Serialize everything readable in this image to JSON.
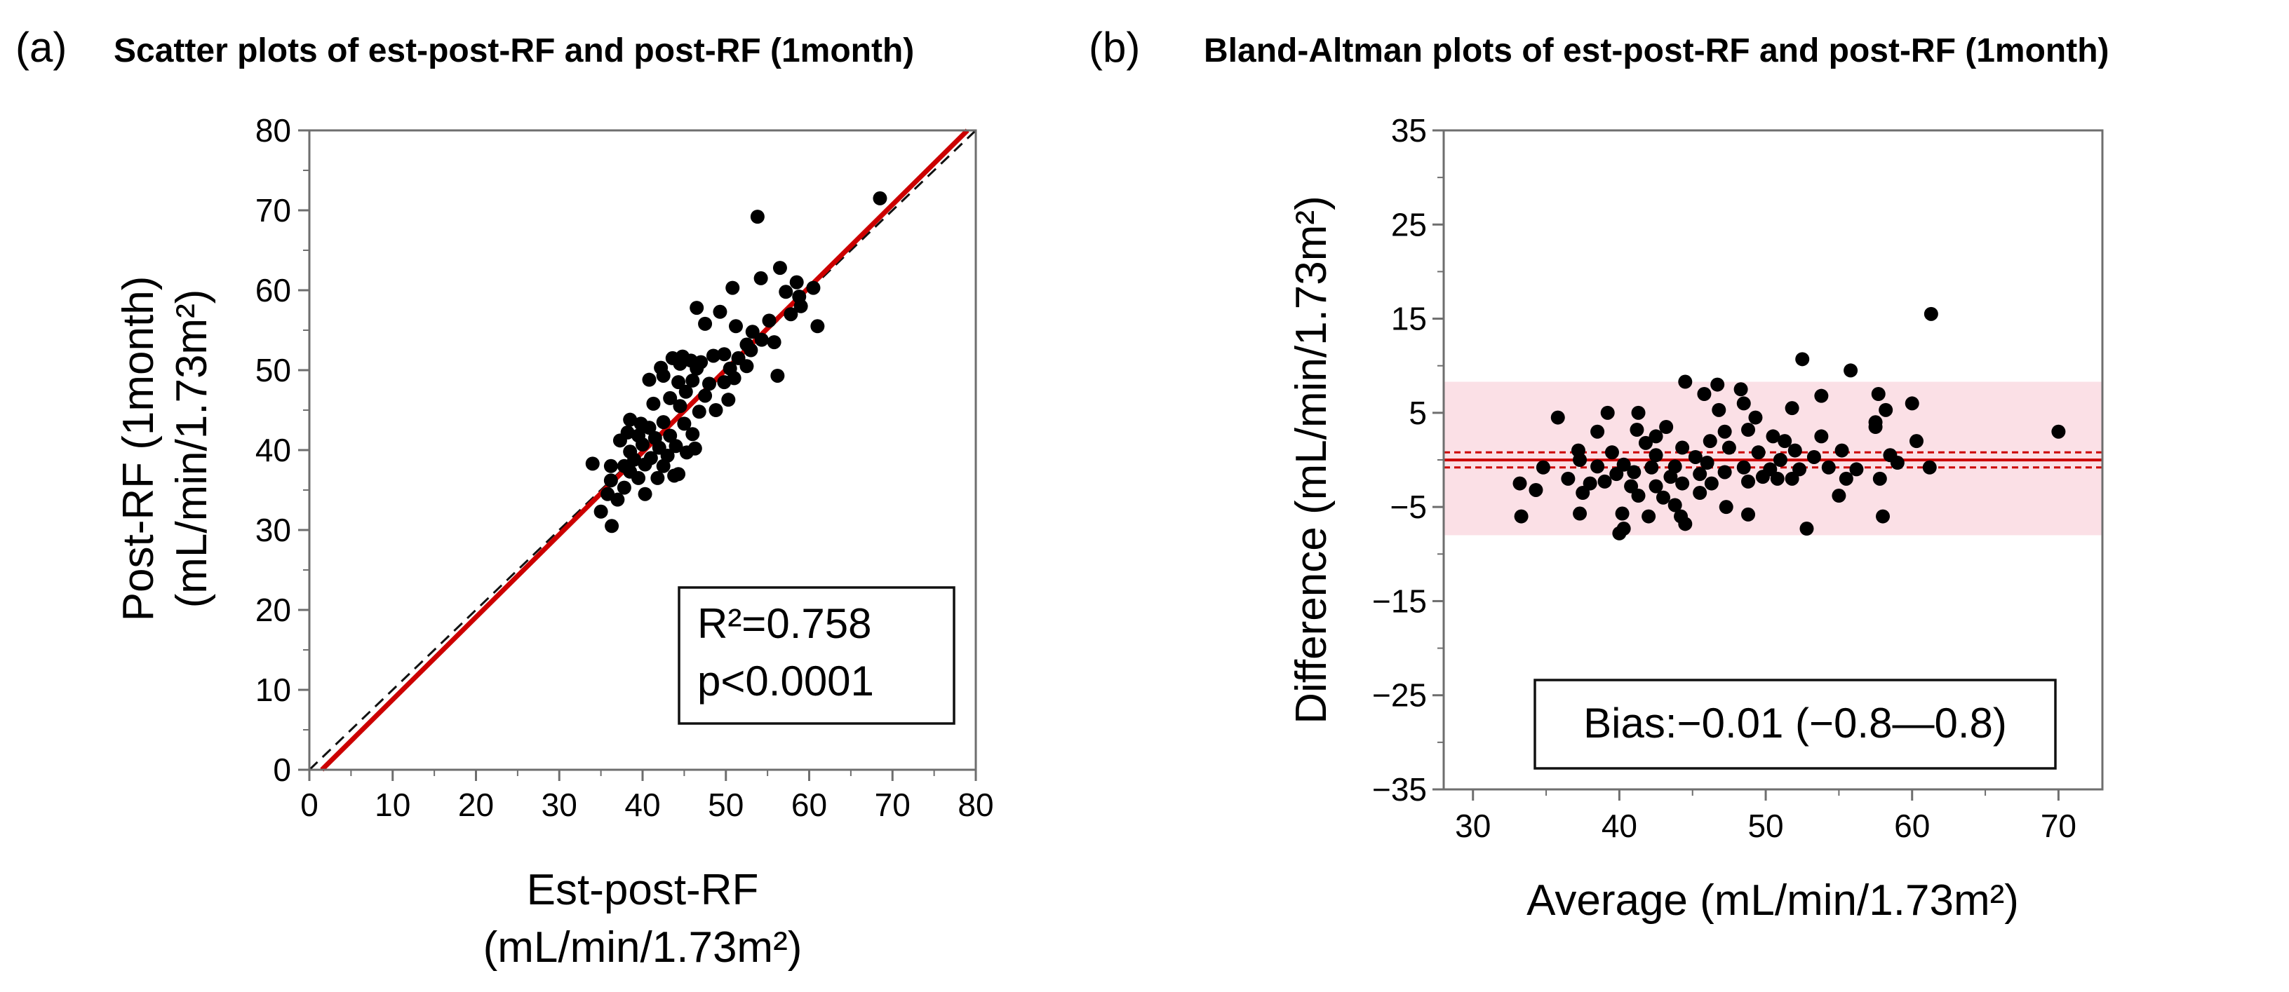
{
  "chart_data": [
    {
      "panel": "(a)",
      "type": "scatter",
      "title": "Scatter plots of est-post-RF and post-RF (1month)",
      "xlabel_lines": [
        "Est-post-RF",
        "(mL/min/1.73m²)"
      ],
      "ylabel_lines": [
        "Post-RF  (1month)",
        "(mL/min/1.73m²)"
      ],
      "xlim": [
        0,
        80
      ],
      "ylim": [
        0,
        80
      ],
      "xticks": [
        0,
        10,
        20,
        30,
        40,
        50,
        60,
        70,
        80
      ],
      "yticks": [
        0,
        10,
        20,
        30,
        40,
        50,
        60,
        70,
        80
      ],
      "annotation_lines": [
        "R²=0.758",
        "p<0.0001"
      ],
      "identity_line": {
        "from": [
          0,
          0
        ],
        "to": [
          80,
          80
        ],
        "style": "dashed",
        "color": "#111111"
      },
      "regression_line": {
        "from": [
          1.5,
          0
        ],
        "to": [
          79,
          80
        ],
        "color": "#cc0000"
      },
      "points": [
        [
          68.5,
          71.5
        ],
        [
          53.8,
          69.2
        ],
        [
          54.2,
          61.5
        ],
        [
          56.5,
          62.8
        ],
        [
          58.5,
          61.0
        ],
        [
          60.5,
          60.3
        ],
        [
          57.2,
          59.8
        ],
        [
          58.8,
          59.2
        ],
        [
          59.0,
          58.0
        ],
        [
          57.8,
          57.0
        ],
        [
          61.0,
          55.5
        ],
        [
          55.2,
          56.2
        ],
        [
          50.8,
          60.3
        ],
        [
          49.3,
          57.3
        ],
        [
          46.5,
          57.8
        ],
        [
          47.5,
          55.8
        ],
        [
          51.2,
          55.5
        ],
        [
          53.2,
          54.8
        ],
        [
          52.5,
          53.2
        ],
        [
          54.3,
          53.8
        ],
        [
          55.8,
          53.5
        ],
        [
          53.0,
          52.5
        ],
        [
          48.5,
          51.8
        ],
        [
          49.8,
          52.0
        ],
        [
          51.5,
          51.5
        ],
        [
          47.0,
          51.0
        ],
        [
          43.6,
          51.5
        ],
        [
          44.8,
          51.7
        ],
        [
          45.8,
          51.2
        ],
        [
          42.2,
          50.3
        ],
        [
          44.5,
          50.8
        ],
        [
          46.5,
          50.2
        ],
        [
          50.5,
          50.2
        ],
        [
          52.5,
          50.5
        ],
        [
          51.0,
          49.0
        ],
        [
          56.2,
          49.3
        ],
        [
          40.8,
          48.8
        ],
        [
          42.5,
          49.3
        ],
        [
          44.3,
          48.5
        ],
        [
          46.0,
          48.7
        ],
        [
          48.0,
          48.3
        ],
        [
          49.8,
          48.5
        ],
        [
          45.2,
          47.3
        ],
        [
          47.5,
          46.8
        ],
        [
          50.3,
          46.3
        ],
        [
          43.3,
          46.5
        ],
        [
          41.3,
          45.8
        ],
        [
          44.5,
          45.5
        ],
        [
          46.8,
          44.8
        ],
        [
          48.8,
          45.0
        ],
        [
          38.5,
          43.8
        ],
        [
          39.8,
          43.3
        ],
        [
          40.8,
          42.8
        ],
        [
          42.5,
          43.5
        ],
        [
          45.0,
          43.3
        ],
        [
          46.0,
          42.0
        ],
        [
          38.2,
          42.2
        ],
        [
          39.5,
          41.8
        ],
        [
          41.5,
          41.5
        ],
        [
          43.3,
          41.8
        ],
        [
          37.3,
          41.2
        ],
        [
          40.0,
          40.7
        ],
        [
          42.0,
          40.3
        ],
        [
          44.0,
          40.5
        ],
        [
          46.3,
          40.2
        ],
        [
          45.3,
          39.7
        ],
        [
          38.5,
          39.8
        ],
        [
          39.0,
          38.8
        ],
        [
          41.0,
          39.0
        ],
        [
          43.0,
          39.3
        ],
        [
          34.0,
          38.3
        ],
        [
          36.2,
          38.0
        ],
        [
          37.8,
          38.0
        ],
        [
          40.3,
          38.2
        ],
        [
          42.5,
          38.0
        ],
        [
          44.3,
          37.0
        ],
        [
          38.5,
          37.3
        ],
        [
          41.8,
          36.5
        ],
        [
          43.8,
          36.8
        ],
        [
          36.2,
          36.2
        ],
        [
          39.5,
          36.5
        ],
        [
          37.8,
          35.3
        ],
        [
          40.3,
          34.5
        ],
        [
          35.8,
          34.5
        ],
        [
          37.0,
          33.8
        ],
        [
          35.0,
          32.3
        ],
        [
          36.3,
          30.5
        ]
      ]
    },
    {
      "panel": "(b)",
      "type": "scatter",
      "title": "Bland-Altman plots of est-post-RF and post-RF (1month)",
      "xlabel": "Average (mL/min/1.73m²)",
      "ylabel": "Difference (mL/min/1.73m²)",
      "xlim": [
        28,
        73
      ],
      "ylim": [
        -35,
        35
      ],
      "xticks": [
        30,
        40,
        50,
        60,
        70
      ],
      "yticks": [
        35,
        25,
        15,
        5,
        -5,
        -15,
        -25,
        -35
      ],
      "ytick_labels": [
        "35",
        "25",
        "15",
        "5",
        "−5",
        "−15",
        "−25",
        "−35"
      ],
      "annotation": "Bias:−0.01 (−0.8—0.8)",
      "bias": -0.01,
      "bias_ci": [
        -0.8,
        0.8
      ],
      "limits_of_agreement": [
        -8.0,
        8.3
      ],
      "loa_band_color": "#fbe0e6",
      "bias_color": "#cc0000",
      "points": [
        [
          61.3,
          15.5
        ],
        [
          52.5,
          10.7
        ],
        [
          55.8,
          9.5
        ],
        [
          70.0,
          3.0
        ],
        [
          44.5,
          8.3
        ],
        [
          46.7,
          8.0
        ],
        [
          48.3,
          7.5
        ],
        [
          45.8,
          7.0
        ],
        [
          53.8,
          6.8
        ],
        [
          57.7,
          7.0
        ],
        [
          48.5,
          6.0
        ],
        [
          60.0,
          6.0
        ],
        [
          51.8,
          5.5
        ],
        [
          35.8,
          4.5
        ],
        [
          39.2,
          5.0
        ],
        [
          41.3,
          5.0
        ],
        [
          46.8,
          5.3
        ],
        [
          49.3,
          4.5
        ],
        [
          57.5,
          4.0
        ],
        [
          58.2,
          5.3
        ],
        [
          41.2,
          3.2
        ],
        [
          43.2,
          3.5
        ],
        [
          47.2,
          3.0
        ],
        [
          48.8,
          3.2
        ],
        [
          50.5,
          2.5
        ],
        [
          60.3,
          2.0
        ],
        [
          57.5,
          3.5
        ],
        [
          38.5,
          3.0
        ],
        [
          42.5,
          2.5
        ],
        [
          46.2,
          2.0
        ],
        [
          51.3,
          2.0
        ],
        [
          53.8,
          2.5
        ],
        [
          41.8,
          1.8
        ],
        [
          44.3,
          1.3
        ],
        [
          47.5,
          1.3
        ],
        [
          49.5,
          0.8
        ],
        [
          52.0,
          1.0
        ],
        [
          55.2,
          1.0
        ],
        [
          58.5,
          0.5
        ],
        [
          37.2,
          1.0
        ],
        [
          39.5,
          0.8
        ],
        [
          42.5,
          0.5
        ],
        [
          45.2,
          0.3
        ],
        [
          51.0,
          0.0
        ],
        [
          53.3,
          0.3
        ],
        [
          34.8,
          -0.8
        ],
        [
          37.3,
          0.0
        ],
        [
          38.5,
          -0.7
        ],
        [
          40.3,
          -0.5
        ],
        [
          42.2,
          -0.8
        ],
        [
          43.8,
          -0.7
        ],
        [
          46.0,
          -0.3
        ],
        [
          48.5,
          -0.8
        ],
        [
          50.3,
          -1.0
        ],
        [
          52.3,
          -1.0
        ],
        [
          54.3,
          -0.8
        ],
        [
          56.2,
          -1.0
        ],
        [
          59.0,
          -0.3
        ],
        [
          61.2,
          -0.8
        ],
        [
          39.8,
          -1.5
        ],
        [
          41.0,
          -1.3
        ],
        [
          43.5,
          -1.8
        ],
        [
          45.5,
          -1.5
        ],
        [
          47.2,
          -1.3
        ],
        [
          49.8,
          -1.8
        ],
        [
          51.8,
          -2.0
        ],
        [
          57.8,
          -2.0
        ],
        [
          33.2,
          -2.5
        ],
        [
          36.5,
          -2.0
        ],
        [
          38.0,
          -2.5
        ],
        [
          39.0,
          -2.3
        ],
        [
          40.8,
          -2.8
        ],
        [
          42.5,
          -2.8
        ],
        [
          44.3,
          -2.5
        ],
        [
          46.3,
          -2.5
        ],
        [
          48.8,
          -2.3
        ],
        [
          50.8,
          -2.0
        ],
        [
          55.5,
          -2.0
        ],
        [
          37.5,
          -3.5
        ],
        [
          41.3,
          -3.8
        ],
        [
          43.0,
          -4.0
        ],
        [
          45.5,
          -3.5
        ],
        [
          55.0,
          -3.8
        ],
        [
          43.8,
          -4.8
        ],
        [
          47.3,
          -5.0
        ],
        [
          48.8,
          -5.8
        ],
        [
          33.3,
          -6.0
        ],
        [
          37.3,
          -5.7
        ],
        [
          40.2,
          -5.7
        ],
        [
          42.0,
          -6.0
        ],
        [
          44.2,
          -6.0
        ],
        [
          58.0,
          -6.0
        ],
        [
          44.5,
          -6.8
        ],
        [
          40.3,
          -7.3
        ],
        [
          40.0,
          -7.8
        ],
        [
          52.8,
          -7.3
        ],
        [
          34.3,
          -3.2
        ]
      ]
    }
  ]
}
